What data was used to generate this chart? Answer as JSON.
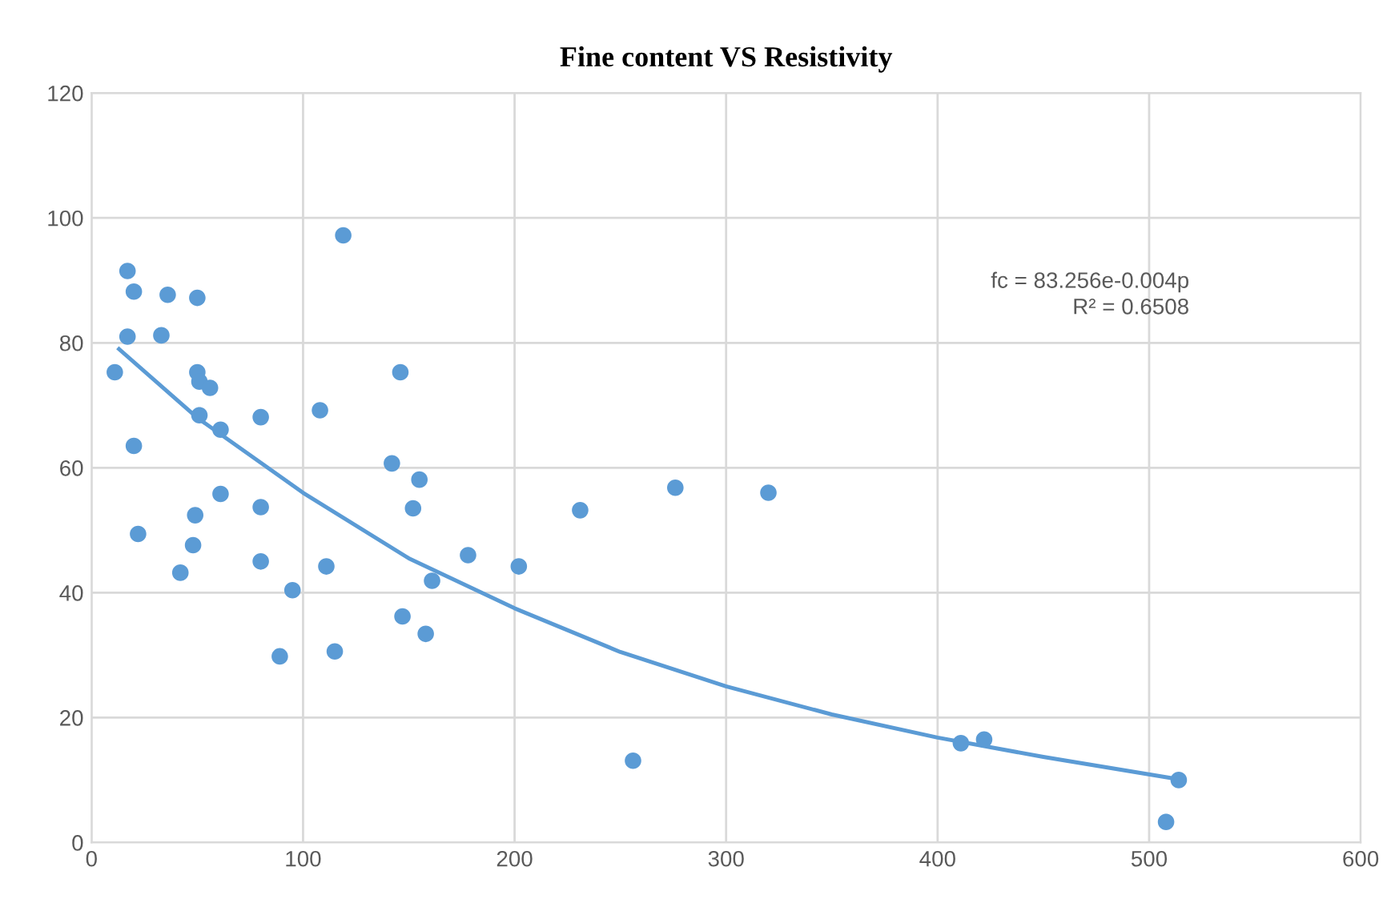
{
  "chart_data": {
    "type": "scatter",
    "title": "Fine content VS Resistivity",
    "series": [
      {
        "color": "#5b9bd5",
        "marker": "circle",
        "x": [
          11,
          17,
          20,
          17,
          20,
          22,
          33,
          36,
          50,
          50,
          51,
          56,
          51,
          61,
          42,
          48,
          49,
          61,
          80,
          80,
          80,
          95,
          89,
          108,
          111,
          115,
          119,
          142,
          146,
          147,
          152,
          155,
          158,
          160,
          161,
          178,
          202,
          231,
          256,
          276,
          320,
          411,
          422,
          508,
          514
        ],
        "values": [
          75.3,
          91.5,
          88.2,
          81,
          63.5,
          49.4,
          81.2,
          87.7,
          87.2,
          75.3,
          73.8,
          72.8,
          68.4,
          66.1,
          43.2,
          47.6,
          52.4,
          55.8,
          53.7,
          45,
          68.1,
          40.4,
          29.8,
          69.2,
          44.2,
          30.6,
          97.2,
          60.7,
          75.3,
          36.2,
          53.5,
          58.1,
          33.4,
          null,
          41.9,
          46,
          44.2,
          53.2,
          13.1,
          56.8,
          56,
          15.9,
          16.5,
          3.3,
          10
        ]
      },
      {
        "type": "line",
        "color": "#5b9bd5",
        "marker": "none",
        "line_style": "solid",
        "x": [
          13,
          50,
          100,
          150,
          200,
          250,
          300,
          350,
          400,
          450,
          516
        ],
        "values": [
          79,
          68,
          56,
          45.5,
          37.5,
          30.5,
          25,
          20.5,
          16.8,
          13.7,
          10
        ]
      }
    ],
    "annotations": [
      "fc = 83.256e-0.004p",
      "R² = 0.6508"
    ],
    "xlim": [
      0,
      600
    ],
    "xticks": [
      0,
      100,
      200,
      300,
      400,
      500,
      600
    ],
    "ylim": [
      0,
      120
    ],
    "yticks": [
      0,
      20,
      40,
      60,
      80,
      100,
      120
    ],
    "grid": true,
    "legend": false
  }
}
